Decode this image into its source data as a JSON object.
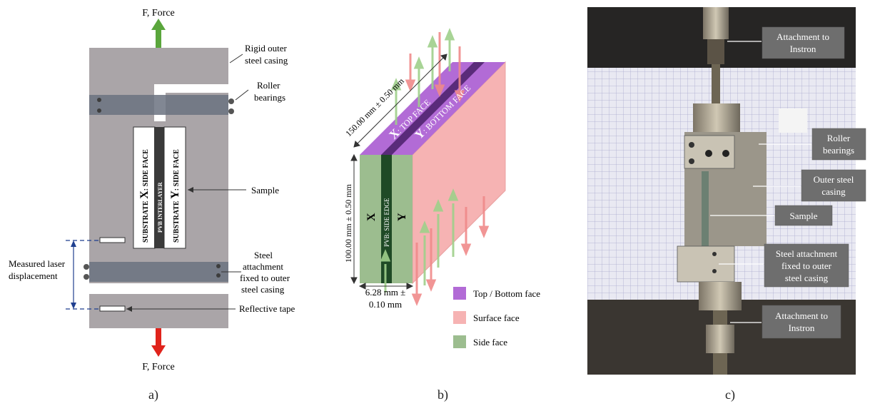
{
  "panel_a": {
    "force_top": "F, Force",
    "force_bottom": "F, Force",
    "casing_label_1": "Rigid outer",
    "casing_label_2": "steel casing",
    "roller_label_1": "Roller",
    "roller_label_2": "bearings",
    "sample_label": "Sample",
    "laser_label_1": "Measured laser",
    "laser_label_2": "displacement",
    "attach_label_1": "Steel",
    "attach_label_2": "attachment",
    "attach_label_3": "fixed to outer",
    "attach_label_4": "steel casing",
    "tape_label": "Reflective tape",
    "strip_x_pre": "SUBSTRATE ",
    "strip_x_big": "X",
    "strip_x_post": ": SIDE FACE",
    "strip_pvb": "PVB INTERLAYER",
    "strip_y_pre": "SUBSTRATE ",
    "strip_y_big": "Y",
    "strip_y_post": ": SIDE FACE",
    "caption": "a)",
    "colors": {
      "casing": "#aaa5a8",
      "bearing_band": "#6b7280",
      "arrow_up": "#5aa63c",
      "arrow_down": "#e0231b"
    }
  },
  "panel_b": {
    "dim_length": "150.00 mm ± 0.50 mm",
    "dim_height": "100.00 mm ± 0.50 mm",
    "dim_thick_1": "6.28 mm ±",
    "dim_thick_2": "0.10 mm",
    "top_x_big": "X",
    "top_x_text": ": TOP FACE",
    "top_y_big": "Y",
    "top_y_text": ": BOTTOM FACE",
    "side_x": "X",
    "side_y": "Y",
    "side_pvb": "PVB: SIDE EDGE",
    "legend": [
      {
        "label": "Top / Bottom face",
        "color": "#b26bd6"
      },
      {
        "label": "Surface face",
        "color": "#f6b3b3"
      },
      {
        "label": "Side face",
        "color": "#9cbd8f"
      }
    ],
    "caption": "b)"
  },
  "panel_c": {
    "labels": {
      "attach_top_1": "Attachment to",
      "attach_top_2": "Instron",
      "roller_1": "Roller",
      "roller_2": "bearings",
      "casing_1": "Outer steel",
      "casing_2": "casing",
      "sample": "Sample",
      "steel_1": "Steel attachment",
      "steel_2": "fixed to outer",
      "steel_3": "steel casing",
      "attach_bot_1": "Attachment to",
      "attach_bot_2": "Instron"
    },
    "caption": "c)"
  }
}
